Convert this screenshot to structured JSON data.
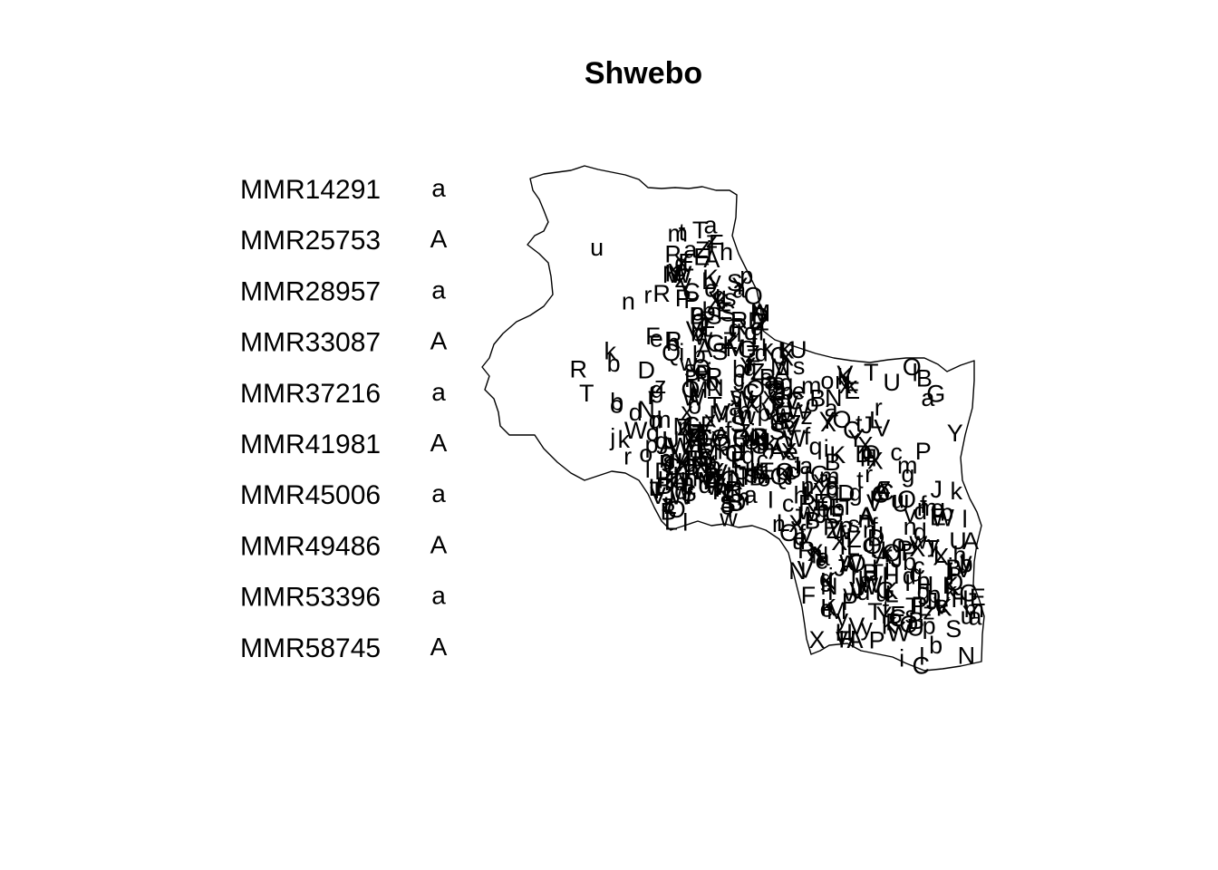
{
  "map": {
    "title": "Shwebo",
    "region_name": "Shwebo",
    "outline_color": "#000000",
    "background_color": "#ffffff"
  },
  "legend": {
    "items": [
      {
        "code": "MMR14291",
        "symbol": "a"
      },
      {
        "code": "MMR25753",
        "symbol": "A"
      },
      {
        "code": "MMR28957",
        "symbol": "a"
      },
      {
        "code": "MMR33087",
        "symbol": "A"
      },
      {
        "code": "MMR37216",
        "symbol": "a"
      },
      {
        "code": "MMR41981",
        "symbol": "A"
      },
      {
        "code": "MMR45006",
        "symbol": "a"
      },
      {
        "code": "MMR49486",
        "symbol": "A"
      },
      {
        "code": "MMR53396",
        "symbol": "a"
      },
      {
        "code": "MMR58745",
        "symbol": "A"
      }
    ]
  },
  "point_glyphs": "PDWVCAXDSZPwMKLuaBQcRXWbaeoAVOJTQfWtnRQXzZXBSMOPLEGRkKIspIrVlmSGQnCJoKPBAKlVqOIztrswxbjdEJeaHFfKMgUvTNWxiymcdXYBAjhLSPRukDgOeqlZTnPaosvXrcyBEHeyNbiCRoGAQUzmMKLpHbtfXlQSWOYdjkvZTnBeVRcPwIOAGaqNrHzsyeJxmLfaVwSOCpTMklEbUdYhnGQRZXsJrWoKBfmtivDjALEcuPwVqxyUzSNhWaTGnkpObRFsYfLjdMwXIeXVzKQlaBhTWGnmUcqZpJEPMAGbNKRwsoLuPSqXZYbkTWhiECVAMnDpgzFjLKQsUeaRxytVYHIBlgXOmPKCZoTnmEeGbRAfgBDxSuiAWzVtYhNqLOaJkyRBAKcmfsQrOpUvkjXZFLEdgbWyGTnIoKcrbRCLGJFpAQNQPYSMvtKHHZXDBREFEgGubMnsdTYwRmcZVlKOqrAetuYPhCWXJbzIDbSWalbeqogAHKMPQzVXUNhBCjaYofKnTdmegVQsuLWlPRIbFXEOpaThMGZdzkJYmQqtfiunC"
}
